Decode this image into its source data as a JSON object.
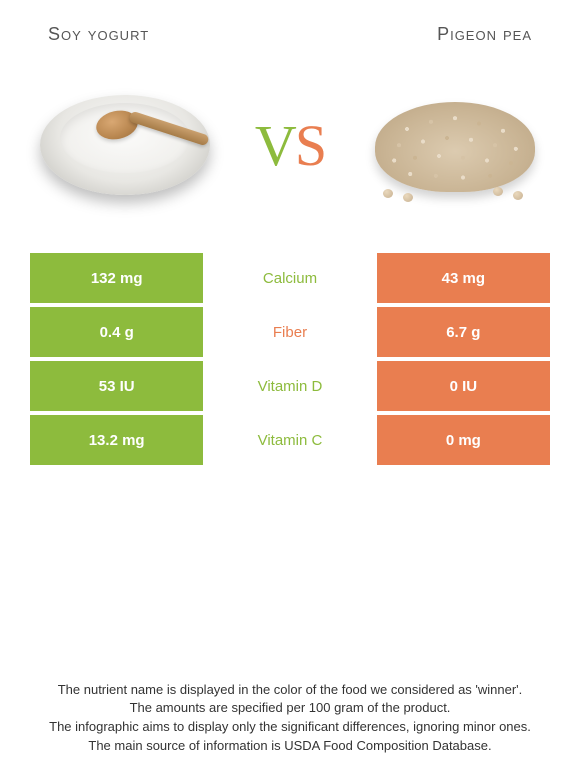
{
  "colors": {
    "left": "#8dbb3d",
    "right": "#e97e50",
    "text": "#333333"
  },
  "fonts": {
    "title_size": 18,
    "vs_size": 58,
    "cell_size": 15,
    "footnote_size": 13
  },
  "food_left": {
    "title": "Soy yogurt"
  },
  "food_right": {
    "title": "Pigeon pea"
  },
  "vs": {
    "v": "V",
    "s": "S"
  },
  "rows": [
    {
      "left": "132 mg",
      "label": "Calcium",
      "right": "43 mg",
      "winner": "left"
    },
    {
      "left": "0.4 g",
      "label": "Fiber",
      "right": "6.7 g",
      "winner": "right"
    },
    {
      "left": "53 IU",
      "label": "Vitamin D",
      "right": "0 IU",
      "winner": "left"
    },
    {
      "left": "13.2 mg",
      "label": "Vitamin C",
      "right": "0 mg",
      "winner": "left"
    }
  ],
  "footnotes": [
    "The nutrient name is displayed in the color of the food we considered as 'winner'.",
    "The amounts are specified per 100 gram of the product.",
    "The infographic aims to display only the significant differences, ignoring minor ones.",
    "The main source of information is USDA Food Composition Database."
  ]
}
